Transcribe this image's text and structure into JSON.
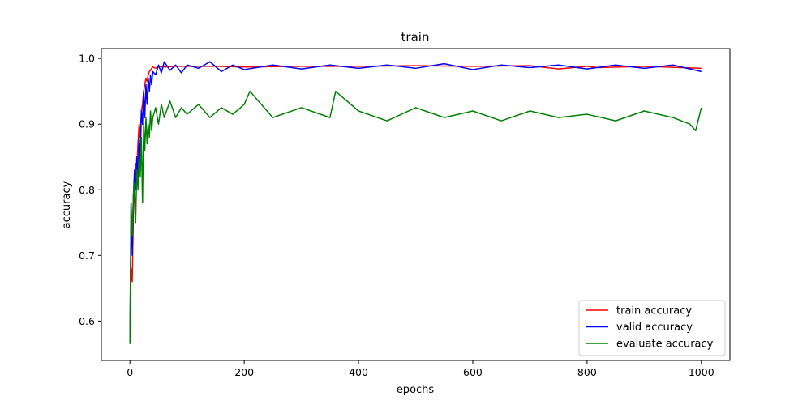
{
  "chart_data": {
    "type": "line",
    "title": "train",
    "xlabel": "epochs",
    "ylabel": "accuracy",
    "xlim": [
      -50,
      1050
    ],
    "ylim": [
      0.54,
      1.015
    ],
    "xticks": [
      0,
      200,
      400,
      600,
      800,
      1000
    ],
    "yticks": [
      0.6,
      0.7,
      0.8,
      0.9,
      1.0
    ],
    "xtick_labels": [
      "0",
      "200",
      "400",
      "600",
      "800",
      "1000"
    ],
    "ytick_labels": [
      "0.6",
      "0.7",
      "0.8",
      "0.9",
      "1.0"
    ],
    "grid": false,
    "legend_position": "lower-right",
    "series": [
      {
        "name": "train accuracy",
        "color": "#ff0000",
        "x": [
          0,
          2,
          4,
          6,
          8,
          10,
          12,
          14,
          16,
          18,
          20,
          22,
          24,
          26,
          28,
          30,
          32,
          34,
          36,
          38,
          40,
          45,
          50,
          60,
          80,
          100,
          150,
          200,
          300,
          400,
          500,
          600,
          700,
          750,
          800,
          820,
          900,
          1000
        ],
        "y": [
          0.57,
          0.68,
          0.66,
          0.76,
          0.8,
          0.84,
          0.83,
          0.87,
          0.9,
          0.88,
          0.92,
          0.93,
          0.95,
          0.96,
          0.97,
          0.965,
          0.975,
          0.98,
          0.982,
          0.985,
          0.987,
          0.985,
          0.988,
          0.987,
          0.988,
          0.988,
          0.988,
          0.987,
          0.988,
          0.988,
          0.989,
          0.988,
          0.989,
          0.984,
          0.988,
          0.986,
          0.988,
          0.985
        ]
      },
      {
        "name": "valid accuracy",
        "color": "#0000ff",
        "x": [
          0,
          2,
          4,
          6,
          8,
          10,
          12,
          14,
          16,
          18,
          20,
          22,
          24,
          26,
          28,
          30,
          32,
          34,
          36,
          38,
          40,
          45,
          50,
          55,
          60,
          70,
          80,
          90,
          100,
          120,
          140,
          160,
          180,
          200,
          250,
          300,
          350,
          400,
          450,
          500,
          550,
          600,
          650,
          700,
          750,
          800,
          850,
          900,
          950,
          1000
        ],
        "y": [
          0.58,
          0.78,
          0.7,
          0.79,
          0.83,
          0.8,
          0.85,
          0.82,
          0.88,
          0.84,
          0.92,
          0.9,
          0.95,
          0.91,
          0.96,
          0.93,
          0.97,
          0.95,
          0.975,
          0.96,
          0.98,
          0.975,
          0.99,
          0.978,
          0.995,
          0.982,
          0.99,
          0.978,
          0.99,
          0.985,
          0.995,
          0.98,
          0.99,
          0.983,
          0.99,
          0.984,
          0.99,
          0.985,
          0.99,
          0.985,
          0.992,
          0.983,
          0.99,
          0.986,
          0.99,
          0.984,
          0.99,
          0.985,
          0.99,
          0.98
        ]
      },
      {
        "name": "evaluate accuracy",
        "color": "#008000",
        "x": [
          0,
          2,
          4,
          6,
          8,
          10,
          12,
          14,
          16,
          18,
          20,
          22,
          24,
          26,
          28,
          30,
          32,
          34,
          36,
          38,
          40,
          45,
          50,
          55,
          60,
          70,
          80,
          90,
          100,
          120,
          140,
          160,
          180,
          200,
          210,
          250,
          300,
          350,
          360,
          400,
          450,
          500,
          550,
          600,
          650,
          700,
          750,
          800,
          850,
          900,
          950,
          980,
          990,
          1000
        ],
        "y": [
          0.565,
          0.78,
          0.73,
          0.79,
          0.81,
          0.75,
          0.83,
          0.8,
          0.85,
          0.82,
          0.88,
          0.78,
          0.9,
          0.86,
          0.91,
          0.87,
          0.9,
          0.88,
          0.92,
          0.89,
          0.91,
          0.925,
          0.9,
          0.93,
          0.91,
          0.935,
          0.91,
          0.925,
          0.915,
          0.93,
          0.91,
          0.925,
          0.915,
          0.93,
          0.95,
          0.91,
          0.925,
          0.91,
          0.95,
          0.92,
          0.905,
          0.925,
          0.91,
          0.92,
          0.905,
          0.92,
          0.91,
          0.915,
          0.905,
          0.92,
          0.91,
          0.9,
          0.89,
          0.925
        ]
      }
    ]
  }
}
